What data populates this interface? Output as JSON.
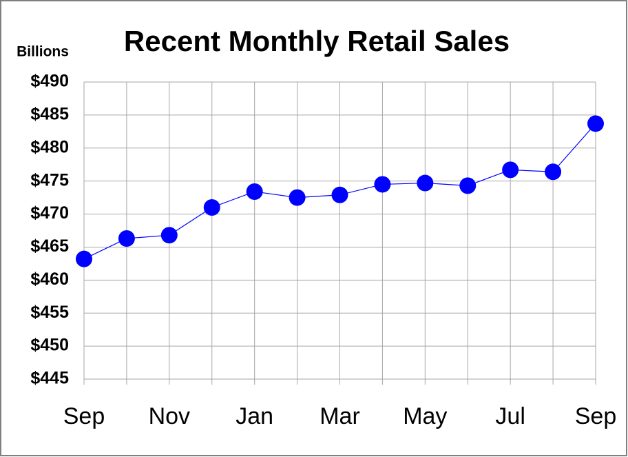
{
  "chart_data": {
    "type": "line",
    "title": "Recent Monthly Retail Sales",
    "y_label": "Billions",
    "categories": [
      "Sep",
      null,
      "Nov",
      null,
      "Jan",
      null,
      "Mar",
      null,
      "May",
      null,
      "Jul",
      null,
      "Sep"
    ],
    "values": [
      463.2,
      466.3,
      466.8,
      471.0,
      473.4,
      472.5,
      472.9,
      474.5,
      474.7,
      474.3,
      476.7,
      476.4,
      483.7
    ],
    "color": "#0000ff",
    "ylim": [
      445,
      490
    ],
    "yticks": [
      {
        "value": 445,
        "label": "$445"
      },
      {
        "value": 450,
        "label": "$450"
      },
      {
        "value": 455,
        "label": "$455"
      },
      {
        "value": 460,
        "label": "$460"
      },
      {
        "value": 465,
        "label": "$465"
      },
      {
        "value": 470,
        "label": "$470"
      },
      {
        "value": 475,
        "label": "$475"
      },
      {
        "value": 480,
        "label": "$480"
      },
      {
        "value": 485,
        "label": "$485"
      },
      {
        "value": 490,
        "label": "$490"
      }
    ],
    "grid": true
  }
}
